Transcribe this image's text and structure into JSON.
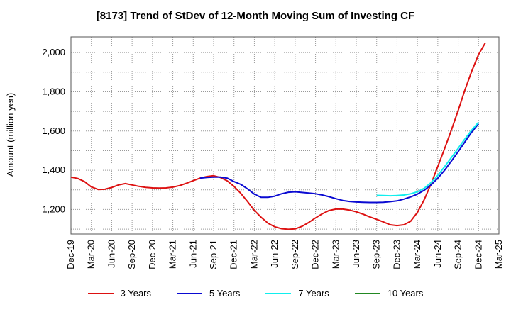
{
  "chart_data": {
    "type": "line",
    "title": "[8173]  Trend of StDev of 12-Month Moving Sum of Investing CF",
    "xlabel": "",
    "ylabel": "Amount (million yen)",
    "x_tick_labels": [
      "Dec-19",
      "Mar-20",
      "Jun-20",
      "Sep-20",
      "Dec-20",
      "Mar-21",
      "Jun-21",
      "Sep-21",
      "Dec-21",
      "Mar-22",
      "Jun-22",
      "Sep-22",
      "Dec-22",
      "Mar-23",
      "Jun-23",
      "Sep-23",
      "Dec-23",
      "Mar-24",
      "Jun-24",
      "Sep-24",
      "Dec-24",
      "Mar-25"
    ],
    "y_ticks": [
      1200,
      1400,
      1600,
      1800,
      2000
    ],
    "y_tick_labels": [
      "1,200",
      "1,400",
      "1,600",
      "1,800",
      "2,000"
    ],
    "ylim": [
      1075,
      2080
    ],
    "grid": true,
    "legend_position": "bottom",
    "series": [
      {
        "name": "3 Years",
        "color": "#dd1111",
        "points": [
          [
            "Dec-19",
            1365
          ],
          [
            "Jan-20",
            1358
          ],
          [
            "Feb-20",
            1342
          ],
          [
            "Mar-20",
            1315
          ],
          [
            "Apr-20",
            1302
          ],
          [
            "May-20",
            1303
          ],
          [
            "Jun-20",
            1312
          ],
          [
            "Jul-20",
            1325
          ],
          [
            "Aug-20",
            1332
          ],
          [
            "Sep-20",
            1325
          ],
          [
            "Oct-20",
            1318
          ],
          [
            "Nov-20",
            1313
          ],
          [
            "Dec-20",
            1310
          ],
          [
            "Jan-21",
            1309
          ],
          [
            "Feb-21",
            1310
          ],
          [
            "Mar-21",
            1314
          ],
          [
            "Apr-21",
            1322
          ],
          [
            "May-21",
            1334
          ],
          [
            "Jun-21",
            1347
          ],
          [
            "Jul-21",
            1360
          ],
          [
            "Aug-21",
            1368
          ],
          [
            "Sep-21",
            1372
          ],
          [
            "Oct-21",
            1363
          ],
          [
            "Nov-21",
            1346
          ],
          [
            "Dec-21",
            1318
          ],
          [
            "Jan-22",
            1282
          ],
          [
            "Feb-22",
            1240
          ],
          [
            "Mar-22",
            1195
          ],
          [
            "Apr-22",
            1160
          ],
          [
            "May-22",
            1130
          ],
          [
            "Jun-22",
            1112
          ],
          [
            "Jul-22",
            1102
          ],
          [
            "Aug-22",
            1099
          ],
          [
            "Sep-22",
            1101
          ],
          [
            "Oct-22",
            1114
          ],
          [
            "Nov-22",
            1134
          ],
          [
            "Dec-22",
            1157
          ],
          [
            "Jan-23",
            1178
          ],
          [
            "Feb-23",
            1195
          ],
          [
            "Mar-23",
            1202
          ],
          [
            "Apr-23",
            1202
          ],
          [
            "May-23",
            1197
          ],
          [
            "Jun-23",
            1188
          ],
          [
            "Jul-23",
            1176
          ],
          [
            "Aug-23",
            1162
          ],
          [
            "Sep-23",
            1150
          ],
          [
            "Oct-23",
            1136
          ],
          [
            "Nov-23",
            1122
          ],
          [
            "Dec-23",
            1118
          ],
          [
            "Jan-24",
            1122
          ],
          [
            "Feb-24",
            1140
          ],
          [
            "Mar-24",
            1185
          ],
          [
            "Apr-24",
            1250
          ],
          [
            "May-24",
            1330
          ],
          [
            "Jun-24",
            1420
          ],
          [
            "Jul-24",
            1510
          ],
          [
            "Aug-24",
            1605
          ],
          [
            "Sep-24",
            1705
          ],
          [
            "Oct-24",
            1810
          ],
          [
            "Nov-24",
            1905
          ],
          [
            "Dec-24",
            1990
          ],
          [
            "Jan-25",
            2050
          ]
        ]
      },
      {
        "name": "5 Years",
        "color": "#0a0ad2",
        "points": [
          [
            "Jul-21",
            1360
          ],
          [
            "Aug-21",
            1363
          ],
          [
            "Sep-21",
            1365
          ],
          [
            "Oct-21",
            1365
          ],
          [
            "Nov-21",
            1360
          ],
          [
            "Dec-21",
            1342
          ],
          [
            "Jan-22",
            1328
          ],
          [
            "Feb-22",
            1305
          ],
          [
            "Mar-22",
            1278
          ],
          [
            "Apr-22",
            1262
          ],
          [
            "May-22",
            1262
          ],
          [
            "Jun-22",
            1268
          ],
          [
            "Jul-22",
            1280
          ],
          [
            "Aug-22",
            1288
          ],
          [
            "Sep-22",
            1290
          ],
          [
            "Oct-22",
            1287
          ],
          [
            "Nov-22",
            1284
          ],
          [
            "Dec-22",
            1280
          ],
          [
            "Jan-23",
            1274
          ],
          [
            "Feb-23",
            1265
          ],
          [
            "Mar-23",
            1255
          ],
          [
            "Apr-23",
            1246
          ],
          [
            "May-23",
            1241
          ],
          [
            "Jun-23",
            1238
          ],
          [
            "Jul-23",
            1237
          ],
          [
            "Aug-23",
            1236
          ],
          [
            "Sep-23",
            1236
          ],
          [
            "Oct-23",
            1237
          ],
          [
            "Nov-23",
            1240
          ],
          [
            "Dec-23",
            1244
          ],
          [
            "Jan-24",
            1253
          ],
          [
            "Feb-24",
            1264
          ],
          [
            "Mar-24",
            1278
          ],
          [
            "Apr-24",
            1298
          ],
          [
            "May-24",
            1325
          ],
          [
            "Jun-24",
            1360
          ],
          [
            "Jul-24",
            1400
          ],
          [
            "Aug-24",
            1447
          ],
          [
            "Sep-24",
            1495
          ],
          [
            "Oct-24",
            1545
          ],
          [
            "Nov-24",
            1595
          ],
          [
            "Dec-24",
            1637
          ]
        ]
      },
      {
        "name": "7 Years",
        "color": "#11eeee",
        "points": [
          [
            "Sep-23",
            1272
          ],
          [
            "Oct-23",
            1271
          ],
          [
            "Nov-23",
            1270
          ],
          [
            "Dec-23",
            1271
          ],
          [
            "Jan-24",
            1274
          ],
          [
            "Feb-24",
            1280
          ],
          [
            "Mar-24",
            1290
          ],
          [
            "Apr-24",
            1308
          ],
          [
            "May-24",
            1337
          ],
          [
            "Jun-24",
            1374
          ],
          [
            "Jul-24",
            1418
          ],
          [
            "Aug-24",
            1465
          ],
          [
            "Sep-24",
            1512
          ],
          [
            "Oct-24",
            1560
          ],
          [
            "Nov-24",
            1605
          ],
          [
            "Dec-24",
            1645
          ]
        ]
      },
      {
        "name": "10 Years",
        "color": "#228822",
        "points": []
      }
    ]
  }
}
